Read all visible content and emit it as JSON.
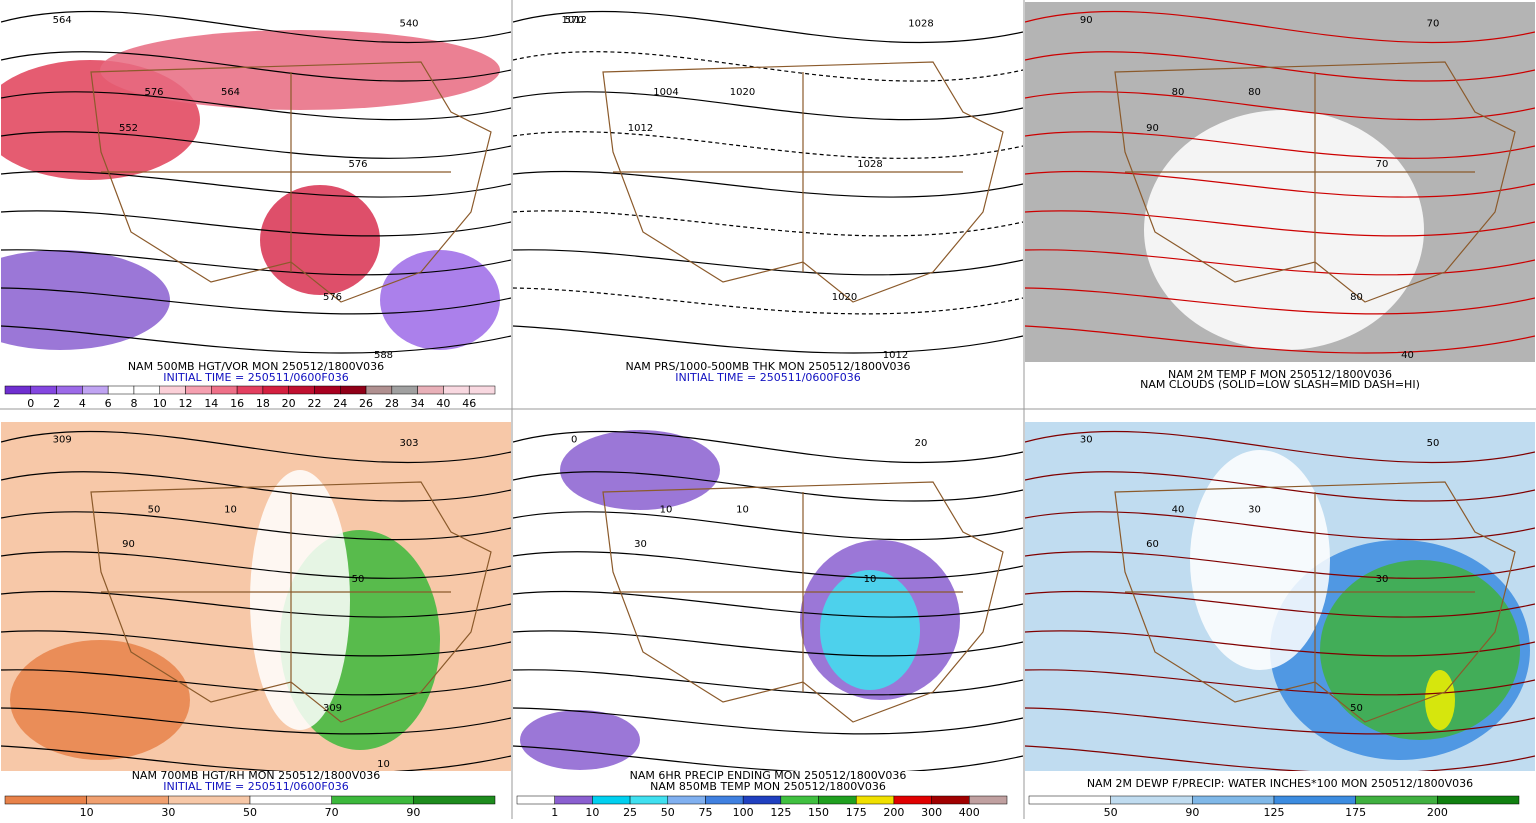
{
  "panels": [
    {
      "captions": [
        "NAM 500MB HGT/VOR MON 250512/1800V036",
        "INITIAL TIME = 250511/0600F036"
      ],
      "colorbar": [
        "0",
        "2",
        "4",
        "6",
        "8",
        "10",
        "12",
        "14",
        "16",
        "18",
        "20",
        "22",
        "24",
        "26",
        "28",
        "34",
        "40",
        "46"
      ],
      "map_labels": [
        "564",
        "576",
        "540",
        "564",
        "552",
        "576",
        "576",
        "588"
      ]
    },
    {
      "captions": [
        "NAM PRS/1000-500MB THK MON 250512/1800V036",
        "INITIAL TIME = 250511/0600F036"
      ],
      "colorbar": [],
      "map_labels": [
        "1012",
        "1004",
        "1028",
        "1020",
        "1012",
        "1028",
        "1020",
        "1012",
        "570"
      ]
    },
    {
      "captions": [
        "NAM 2M TEMP F MON 250512/1800V036",
        "NAM CLOUDS (SOLID=LOW SLASH=MID DASH=HI)"
      ],
      "colorbar": [],
      "map_labels": [
        "90",
        "80",
        "70",
        "80",
        "90",
        "70",
        "80",
        "40"
      ]
    },
    {
      "captions": [
        "NAM 700MB HGT/RH MON 250512/1800V036",
        "INITIAL TIME = 250511/0600F036"
      ],
      "colorbar": [
        "10",
        "30",
        "50",
        "70",
        "90"
      ],
      "map_labels": [
        "309",
        "50",
        "303",
        "10",
        "90",
        "50",
        "309",
        "10"
      ]
    },
    {
      "captions": [
        "NAM 6HR PRECIP ENDING MON 250512/1800V036",
        "NAM 850MB TEMP MON 250512/1800V036"
      ],
      "colorbar": [
        "1",
        "10",
        "25",
        "50",
        "75",
        "100",
        "125",
        "150",
        "175",
        "200",
        "300",
        "400"
      ],
      "map_labels": [
        "0",
        "10",
        "20",
        "10",
        "30",
        "10"
      ]
    },
    {
      "captions": [
        "NAM 2M DEWP F/PRECIP: WATER INCHES*100 MON 250512/1800V036"
      ],
      "colorbar": [
        "50",
        "90",
        "125",
        "175",
        "200"
      ],
      "map_labels": [
        "30",
        "40",
        "50",
        "30",
        "60",
        "30",
        "50"
      ]
    }
  ]
}
